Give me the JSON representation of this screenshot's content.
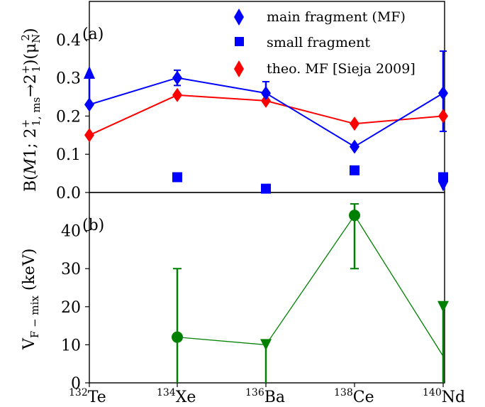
{
  "chart_data": [
    {
      "panel": "(a)",
      "type": "line",
      "categories": [
        "Te",
        "Xe",
        "Ba",
        "Ce",
        "Nd"
      ],
      "category_mass": [
        "132",
        "134",
        "136",
        "138",
        "140"
      ],
      "ylabel_parts": {
        "main": "B(",
        "M": "M",
        "one": "1; 2",
        "sup1": "+",
        "sub1": "1, ms",
        "arrow": "→2",
        "sup2": "+",
        "sub2": "1",
        "close": ")(μ",
        "sub3": "N",
        "sup3": "2",
        "end": ")"
      },
      "ylim": [
        0.0,
        0.5
      ],
      "yticks": [
        "0.0",
        "0.1",
        "0.2",
        "0.3",
        "0.4"
      ],
      "ytick_values": [
        0.0,
        0.1,
        0.2,
        0.3,
        0.4
      ],
      "series": [
        {
          "name": "main fragment (MF)",
          "color": "#0000ff",
          "marker": "diamond",
          "values": [
            0.23,
            0.3,
            0.26,
            0.12,
            0.26
          ],
          "err_low": [
            0.0,
            0.02,
            0.0,
            0.0,
            0.1
          ],
          "err_high": [
            0.09,
            0.02,
            0.03,
            0.0,
            0.11
          ],
          "limit_up": [
            true,
            false,
            false,
            false,
            false
          ]
        },
        {
          "name": "small fragment",
          "color": "#0000ff",
          "marker": "square",
          "values": [
            null,
            0.04,
            0.01,
            0.058,
            0.04
          ],
          "limit_down": [
            false,
            false,
            false,
            false,
            true
          ]
        },
        {
          "name": "theo. MF [Sieja 2009]",
          "color": "#ff0000",
          "marker": "diamond",
          "values": [
            0.15,
            0.255,
            0.24,
            0.18,
            0.2
          ]
        }
      ],
      "legend": [
        "main fragment (MF)",
        "small fragment",
        "theo. MF [Sieja 2009]"
      ],
      "legend_position": "top-right"
    },
    {
      "panel": "(b)",
      "type": "scatter",
      "categories": [
        "Te",
        "Xe",
        "Ba",
        "Ce",
        "Nd"
      ],
      "ylabel_parts": {
        "main": "V",
        "sub": "F − mix",
        "unit": " (keV)"
      },
      "ylim": [
        0,
        50
      ],
      "yticks": [
        "0",
        "10",
        "20",
        "30",
        "40"
      ],
      "ytick_values": [
        0,
        10,
        20,
        30,
        40
      ],
      "series": [
        {
          "color": "#008000",
          "values": [
            null,
            12,
            10,
            44,
            7
          ],
          "marker": [
            "none",
            "circle",
            "triangle-down",
            "circle",
            "triangle-down"
          ],
          "marker_y": [
            null,
            12,
            10,
            44,
            20
          ],
          "err_low": [
            null,
            12,
            10,
            14,
            7
          ],
          "err_high": [
            null,
            18,
            0,
            3,
            13
          ]
        }
      ]
    }
  ]
}
